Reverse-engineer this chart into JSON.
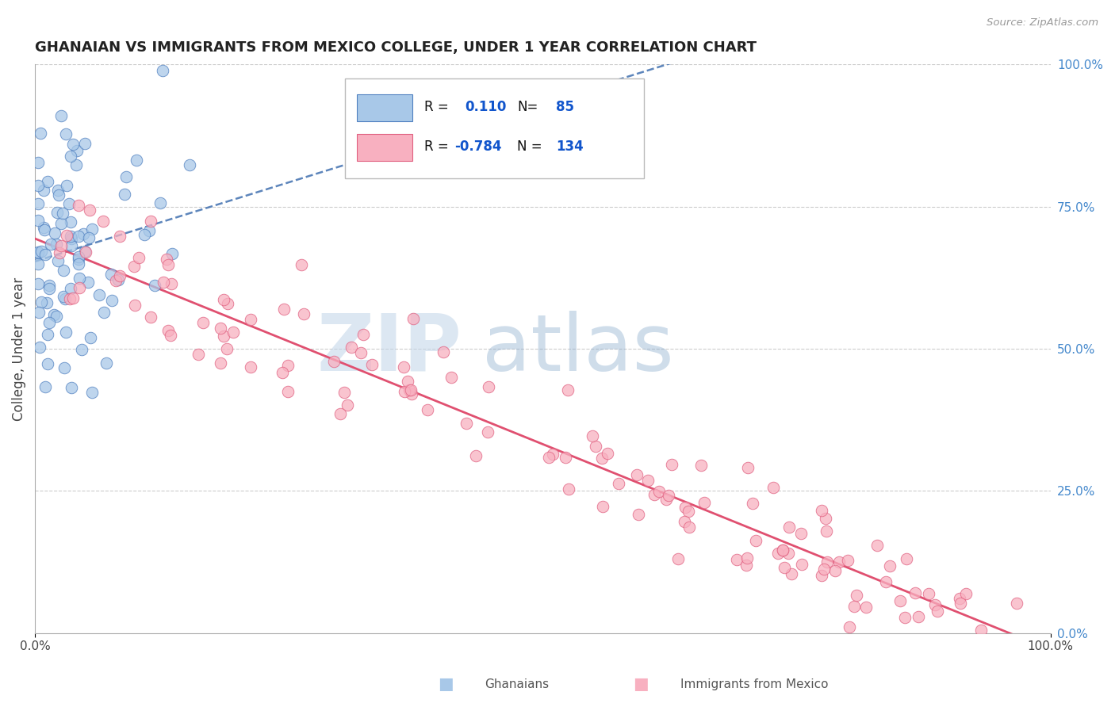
{
  "title": "GHANAIAN VS IMMIGRANTS FROM MEXICO COLLEGE, UNDER 1 YEAR CORRELATION CHART",
  "source": "Source: ZipAtlas.com",
  "ylabel": "College, Under 1 year",
  "legend_r_blue": "0.110",
  "legend_n_blue": "85",
  "legend_r_pink": "-0.784",
  "legend_n_pink": "134",
  "blue_fill": "#a8c8e8",
  "blue_edge": "#5080c0",
  "pink_fill": "#f8b0c0",
  "pink_edge": "#e06080",
  "blue_line": "#4070b0",
  "pink_line": "#e05070",
  "grid_color": "#cccccc",
  "right_tick_color": "#4488cc",
  "watermark_color": "#c8dff0",
  "title_color": "#222222",
  "source_color": "#999999",
  "legend_text_color": "#1155cc",
  "legend_r_color": "#000000",
  "axis_label_color": "#444444",
  "bottom_label_color": "#555555"
}
